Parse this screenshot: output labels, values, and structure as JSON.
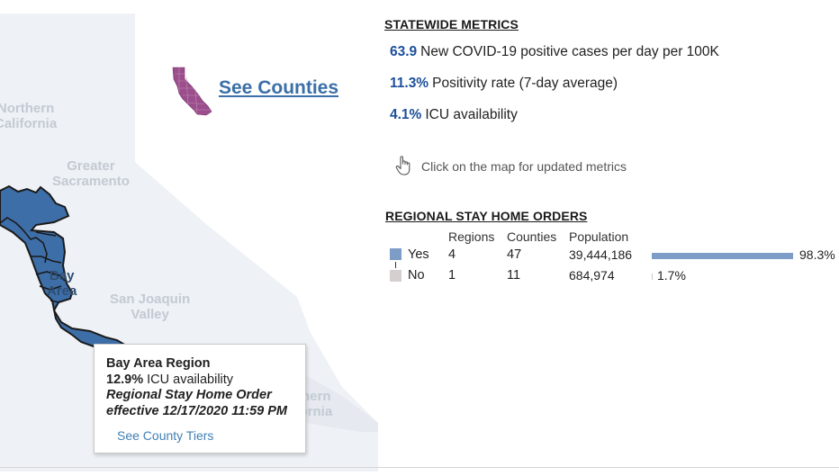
{
  "map": {
    "regions": {
      "northern_california": "Northern\nCalifornia",
      "greater_sacramento": "Greater\nSacramento",
      "bay_area": "Bay\nArea",
      "san_joaquin_valley": "San Joaquin\nValley",
      "southern_california": "Southern\nCalifornia"
    },
    "colors": {
      "selected_region": "#3d6ea8",
      "region_outline": "#1a1a1a",
      "other_regions": "#e8ecf2",
      "counties_mini": "#9a4e8b"
    },
    "see_counties_label": "See Counties",
    "tooltip": {
      "title": "Bay Area Region",
      "icu_value": "12.9%",
      "icu_label": " ICU availability",
      "order_line1": "Regional Stay Home Order",
      "order_line2": "effective 12/17/2020 11:59 PM",
      "link": "See County Tiers"
    }
  },
  "statewide": {
    "heading": "STATEWIDE METRICS",
    "metrics": [
      {
        "value": "63.9",
        "label": "New COVID-19 positive cases per day per 100K"
      },
      {
        "value": "11.3%",
        "label": "Positivity rate (7-day average)"
      },
      {
        "value": "4.1%",
        "label": "ICU availability"
      }
    ],
    "hint": "Click on the map for updated metrics",
    "hint_icon": "pointer-hand-icon"
  },
  "orders": {
    "heading": "REGIONAL STAY HOME ORDERS",
    "columns": [
      "Regions",
      "Counties",
      "Population"
    ],
    "rows": [
      {
        "label": "Yes",
        "regions": "4",
        "counties": "47",
        "population": "39,444,186",
        "pct_label": "98.3%",
        "pct": 98.3,
        "color": "#7d9dc7"
      },
      {
        "label": "No",
        "regions": "1",
        "counties": "11",
        "population": "684,974",
        "pct_label": "1.7%",
        "pct": 1.7,
        "color": "#d6cfcf"
      }
    ]
  }
}
